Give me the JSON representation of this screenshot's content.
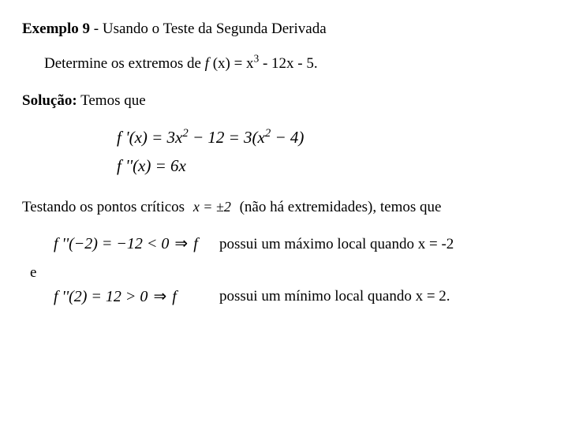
{
  "title_bold": "Exemplo 9",
  "title_rest": " - Usando o Teste da Segunda Derivada",
  "problem_pre": "Determine os extremos de ",
  "problem_func_f": "f ",
  "problem_func_eq": "(x) = x",
  "problem_func_exp": "3",
  "problem_func_tail": " - 12x - 5.",
  "solucao_label": "Solução:",
  "solucao_rest": "   Temos que",
  "eq1_lhs": "f '(x) = 3x",
  "eq1_exp": "2",
  "eq1_mid": " − 12 = 3(x",
  "eq1_exp2": "2",
  "eq1_tail": " − 4)",
  "eq2": "f ''(x) = 6x",
  "test_pre": "Testando os pontos críticos",
  "test_math": "x = ±2",
  "test_post": "(não há extremidades), temos que",
  "conc1_math_l": "f ''(−2) = −12 < 0 ",
  "conc1_arrow": "⇒",
  "conc1_math_r": " f",
  "conc1_text": "possui um máximo local quando x = -2",
  "e_label": "e",
  "conc2_math_l": "f ''(2) = 12 > 0 ",
  "conc2_arrow": "⇒",
  "conc2_math_r": " f",
  "conc2_text": "possui um mínimo local quando x = 2."
}
